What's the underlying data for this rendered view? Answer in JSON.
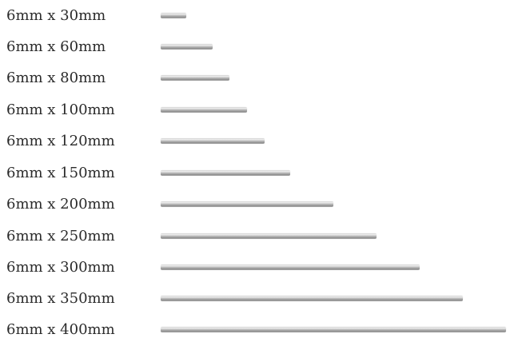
{
  "rods": [
    {
      "label": "6mm x 30mm",
      "length_mm": 30
    },
    {
      "label": "6mm x 60mm",
      "length_mm": 60
    },
    {
      "label": "6mm x 80mm",
      "length_mm": 80
    },
    {
      "label": "6mm x 100mm",
      "length_mm": 100
    },
    {
      "label": "6mm x 120mm",
      "length_mm": 120
    },
    {
      "label": "6mm x 150mm",
      "length_mm": 150
    },
    {
      "label": "6mm x 200mm",
      "length_mm": 200
    },
    {
      "label": "6mm x 250mm",
      "length_mm": 250
    },
    {
      "label": "6mm x 300mm",
      "length_mm": 300
    },
    {
      "label": "6mm x 350mm",
      "length_mm": 350
    },
    {
      "label": "6mm x 400mm",
      "length_mm": 400
    }
  ],
  "colors": {
    "text": "#2b2b2b",
    "rod_highlight": "#f0f0f0",
    "rod_mid": "#b8b8b8",
    "rod_shadow": "#8f8f8f"
  }
}
